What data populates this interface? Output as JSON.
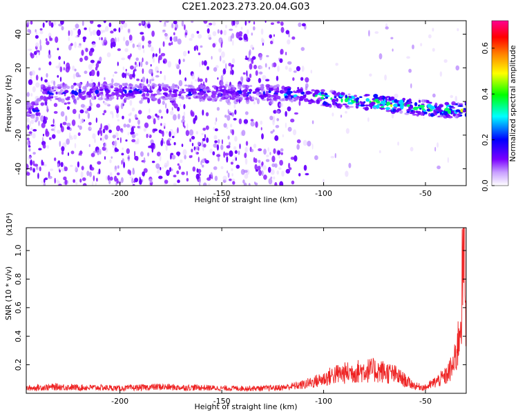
{
  "title": "C2E1.2023.273.20.04.G03",
  "chart_data": [
    {
      "type": "heatmap",
      "xlabel": "Height of straight line (km)",
      "ylabel": "Frequency (Hz)",
      "xlim": [
        -246,
        -30
      ],
      "ylim": [
        -50,
        48
      ],
      "xticks": [
        -200,
        -150,
        -100,
        -50
      ],
      "yticks": [
        -40,
        -20,
        0,
        20,
        40
      ],
      "colorbar": {
        "label": "Normalized spectral amplitude",
        "range": [
          0.0,
          0.72
        ],
        "ticks": [
          0.0,
          0.2,
          0.4,
          0.6
        ],
        "tick_labels": [
          "0.0",
          "0.2",
          "0.4",
          "0.6"
        ],
        "colors": [
          "#ffffff",
          "#7a00ff",
          "#0000ff",
          "#00ffff",
          "#00ff00",
          "#ffff00",
          "#ff8000",
          "#ff0000",
          "#ff00a0"
        ]
      },
      "ridge": {
        "description": "bright band of high amplitude near 0 Hz drifting downward with height",
        "points": [
          [
            -240,
            5
          ],
          [
            -200,
            6
          ],
          [
            -150,
            5
          ],
          [
            -120,
            5
          ],
          [
            -100,
            2
          ],
          [
            -80,
            0
          ],
          [
            -60,
            -3
          ],
          [
            -40,
            -5
          ],
          [
            -30,
            -5
          ]
        ]
      }
    },
    {
      "type": "line",
      "xlabel": "Height of straight line (km)",
      "ylabel": "SNR (10 * v/v)",
      "y_multiplier": "(x10⁴)",
      "xlim": [
        -246,
        -30
      ],
      "ylim": [
        0,
        1.16
      ],
      "xticks": [
        -200,
        -150,
        -100,
        -50
      ],
      "yticks": [
        0.2,
        0.4,
        0.6,
        0.8,
        1.0
      ],
      "ytick_labels": [
        "0.2",
        "0.4",
        "0.6",
        "0.8",
        "1.0"
      ],
      "color": "#ee2222",
      "series": [
        {
          "x": [
            -246,
            -240,
            -230,
            -220,
            -210,
            -200,
            -190,
            -180,
            -170,
            -160,
            -150,
            -140,
            -130,
            -120,
            -115,
            -110,
            -105,
            -100,
            -95,
            -90,
            -85,
            -80,
            -75,
            -70,
            -65,
            -60,
            -55,
            -50,
            -45,
            -40,
            -36,
            -34,
            -33,
            -32,
            -31,
            -30
          ],
          "values": [
            0.035,
            0.04,
            0.045,
            0.04,
            0.04,
            0.035,
            0.04,
            0.045,
            0.04,
            0.04,
            0.035,
            0.035,
            0.035,
            0.04,
            0.05,
            0.06,
            0.08,
            0.1,
            0.13,
            0.14,
            0.15,
            0.16,
            0.16,
            0.15,
            0.13,
            0.09,
            0.05,
            0.04,
            0.08,
            0.12,
            0.2,
            0.35,
            0.5,
            0.75,
            1.1,
            0.4
          ]
        }
      ]
    }
  ]
}
